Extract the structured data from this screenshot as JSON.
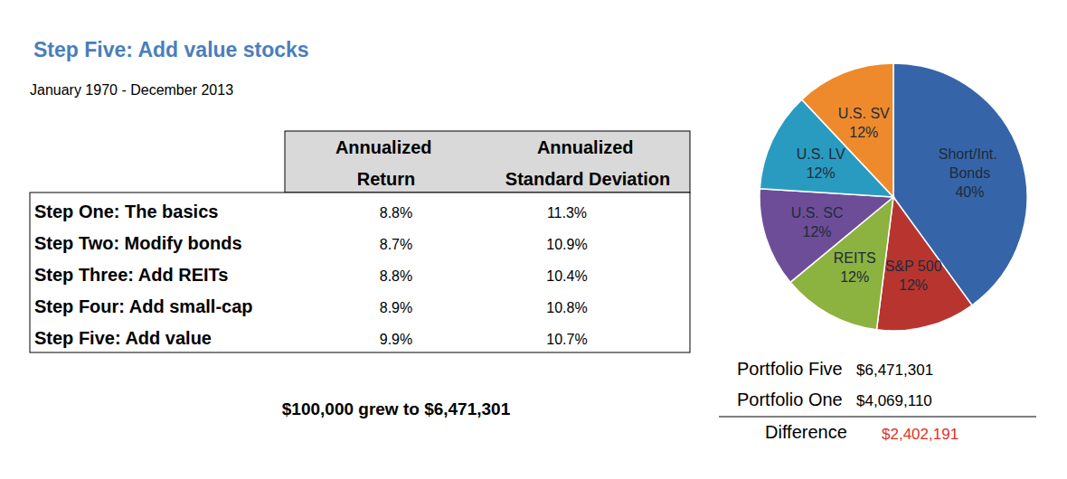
{
  "chart_data": {
    "type": "pie",
    "title": "Step Five: Add value stocks",
    "subtitle": "January 1970 - December 2013",
    "categories": [
      "Short/Int. Bonds",
      "S&P 500",
      "REITS",
      "U.S. SC",
      "U.S. LV",
      "U.S. SV"
    ],
    "values": [
      40,
      12,
      12,
      12,
      12,
      12
    ],
    "value_labels": [
      "40%",
      "12%",
      "12%",
      "12%",
      "12%",
      "12%"
    ],
    "colors": [
      "#3565A8",
      "#B8352F",
      "#8CB23F",
      "#6E4D98",
      "#2A9BC0",
      "#EE8A2B"
    ],
    "data_labels": true
  },
  "table": {
    "columns": [
      "Annualized Return",
      "Annualized Standard Deviation"
    ],
    "rows": [
      {
        "label": "Step One: The basics",
        "cells": [
          "8.8%",
          "11.3%"
        ]
      },
      {
        "label": "Step Two: Modify bonds",
        "cells": [
          "8.7%",
          "10.9%"
        ]
      },
      {
        "label": "Step Three: Add REITs",
        "cells": [
          "8.8%",
          "10.4%"
        ]
      },
      {
        "label": "Step Four: Add small-cap",
        "cells": [
          "8.9%",
          "10.8%"
        ]
      },
      {
        "label": "Step Five: Add value",
        "cells": [
          "9.9%",
          "10.7%"
        ]
      }
    ]
  },
  "caption": "$100,000 grew to $6,471,301",
  "summary": {
    "rows": [
      [
        "Portfolio Five",
        "$6,471,301"
      ],
      [
        "Portfolio One",
        "$4,069,110"
      ]
    ],
    "total": [
      "Difference",
      "$2,402,191"
    ]
  }
}
